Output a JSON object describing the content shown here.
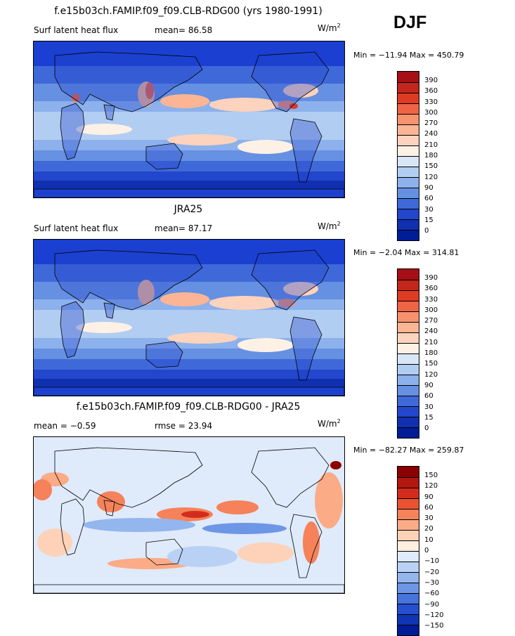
{
  "season": "DJF",
  "panels": [
    {
      "title": "f.e15b03ch.FAMIP.f09_f09.CLB-RDG00 (yrs 1980-1991)",
      "left_label": "Surf latent heat flux",
      "right_label": "mean=  86.58",
      "units_base": "W/m",
      "units_exp": "2",
      "minmax": "Min = −11.94 Max = 450.79",
      "colorbar_labels": [
        "390",
        "360",
        "330",
        "300",
        "270",
        "240",
        "210",
        "180",
        "150",
        "120",
        "90",
        "60",
        "30",
        "15",
        "0"
      ],
      "colorbar_colors": [
        "#a50f15",
        "#c2261c",
        "#de3b22",
        "#ef6445",
        "#f7926f",
        "#fbb595",
        "#fdd3bd",
        "#fdf1e6",
        "#d8e6f7",
        "#b2cdf2",
        "#8cb1ec",
        "#6690e2",
        "#3f69d9",
        "#2246cc",
        "#1030b0",
        "#001c96"
      ],
      "map_id": "m1"
    },
    {
      "title": "JRA25",
      "left_label": "Surf latent heat flux",
      "right_label": "mean=  87.17",
      "units_base": "W/m",
      "units_exp": "2",
      "minmax": "Min =  −2.04 Max = 314.81",
      "colorbar_labels": [
        "390",
        "360",
        "330",
        "300",
        "270",
        "240",
        "210",
        "180",
        "150",
        "120",
        "90",
        "60",
        "30",
        "15",
        "0"
      ],
      "colorbar_colors": [
        "#a50f15",
        "#c2261c",
        "#de3b22",
        "#ef6445",
        "#f7926f",
        "#fbb595",
        "#fdd3bd",
        "#fdf1e6",
        "#d8e6f7",
        "#b2cdf2",
        "#8cb1ec",
        "#6690e2",
        "#3f69d9",
        "#2246cc",
        "#1030b0",
        "#001c96"
      ],
      "map_id": "m2"
    },
    {
      "title": "f.e15b03ch.FAMIP.f09_f09.CLB-RDG00 - JRA25",
      "left_label": "mean =  −0.59",
      "right_label": "rmse =  23.94",
      "units_base": "W/m",
      "units_exp": "2",
      "minmax": "Min = −82.27 Max = 259.87",
      "colorbar_labels": [
        "150",
        "120",
        "90",
        "60",
        "30",
        "20",
        "10",
        "0",
        "−10",
        "−20",
        "−30",
        "−60",
        "−90",
        "−120",
        "−150"
      ],
      "colorbar_colors": [
        "#8b0000",
        "#b2180f",
        "#d42c1c",
        "#ea5332",
        "#f5825a",
        "#fbab86",
        "#fdd2b8",
        "#fdeee0",
        "#dfeafa",
        "#b9d1f4",
        "#93b6ee",
        "#6d96e6",
        "#4673dc",
        "#254fcf",
        "#0f35b5",
        "#001c96"
      ],
      "map_id": "m3"
    }
  ]
}
